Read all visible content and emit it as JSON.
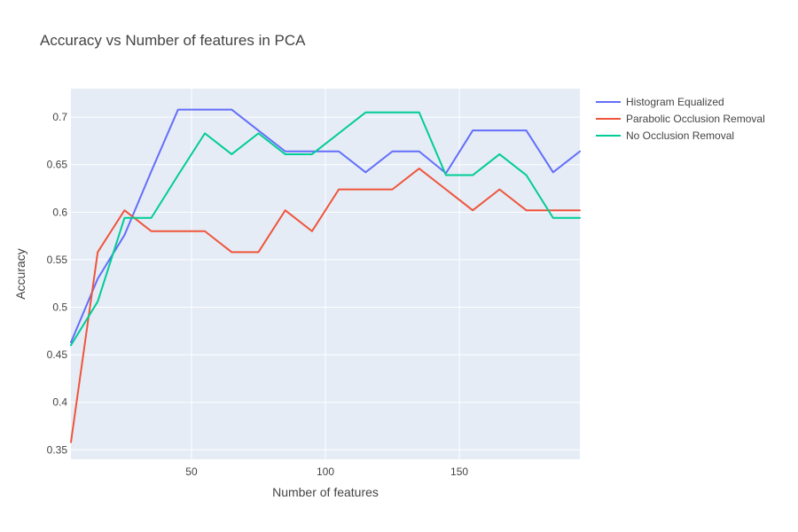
{
  "chart_data": {
    "type": "line",
    "title": "Accuracy vs Number of features in PCA",
    "xlabel": "Number of features",
    "ylabel": "Accuracy",
    "xlim": [
      5,
      195
    ],
    "ylim": [
      0.34,
      0.73
    ],
    "xticks": [
      50,
      100,
      150
    ],
    "yticks": [
      0.35,
      0.4,
      0.45,
      0.5,
      0.55,
      0.6,
      0.65,
      0.7
    ],
    "ytick_labels": [
      "0.35",
      "0.4",
      "0.45",
      "0.5",
      "0.55",
      "0.6",
      "0.65",
      "0.7"
    ],
    "grid": true,
    "legend_position": "top-right outside",
    "x": [
      5,
      15,
      25,
      35,
      45,
      55,
      65,
      75,
      85,
      95,
      105,
      115,
      125,
      135,
      145,
      155,
      165,
      175,
      185,
      195
    ],
    "series": [
      {
        "name": "Histogram Equalized",
        "color": "#636efa",
        "values": [
          0.463,
          0.53,
          0.576,
          0.643,
          0.708,
          0.708,
          0.708,
          0.686,
          0.664,
          0.664,
          0.664,
          0.642,
          0.664,
          0.664,
          0.641,
          0.686,
          0.686,
          0.686,
          0.642,
          0.664
        ]
      },
      {
        "name": "Parabolic Occlusion Removal",
        "color": "#EF553B",
        "values": [
          0.358,
          0.558,
          0.602,
          0.58,
          0.58,
          0.58,
          0.558,
          0.558,
          0.602,
          0.58,
          0.624,
          0.624,
          0.624,
          0.646,
          0.624,
          0.602,
          0.624,
          0.602,
          0.602,
          0.602
        ]
      },
      {
        "name": "No Occlusion Removal",
        "color": "#00cc96",
        "values": [
          0.46,
          0.506,
          0.594,
          0.594,
          0.639,
          0.683,
          0.661,
          0.683,
          0.661,
          0.661,
          0.683,
          0.705,
          0.705,
          0.705,
          0.639,
          0.639,
          0.661,
          0.639,
          0.594,
          0.594
        ]
      }
    ]
  }
}
